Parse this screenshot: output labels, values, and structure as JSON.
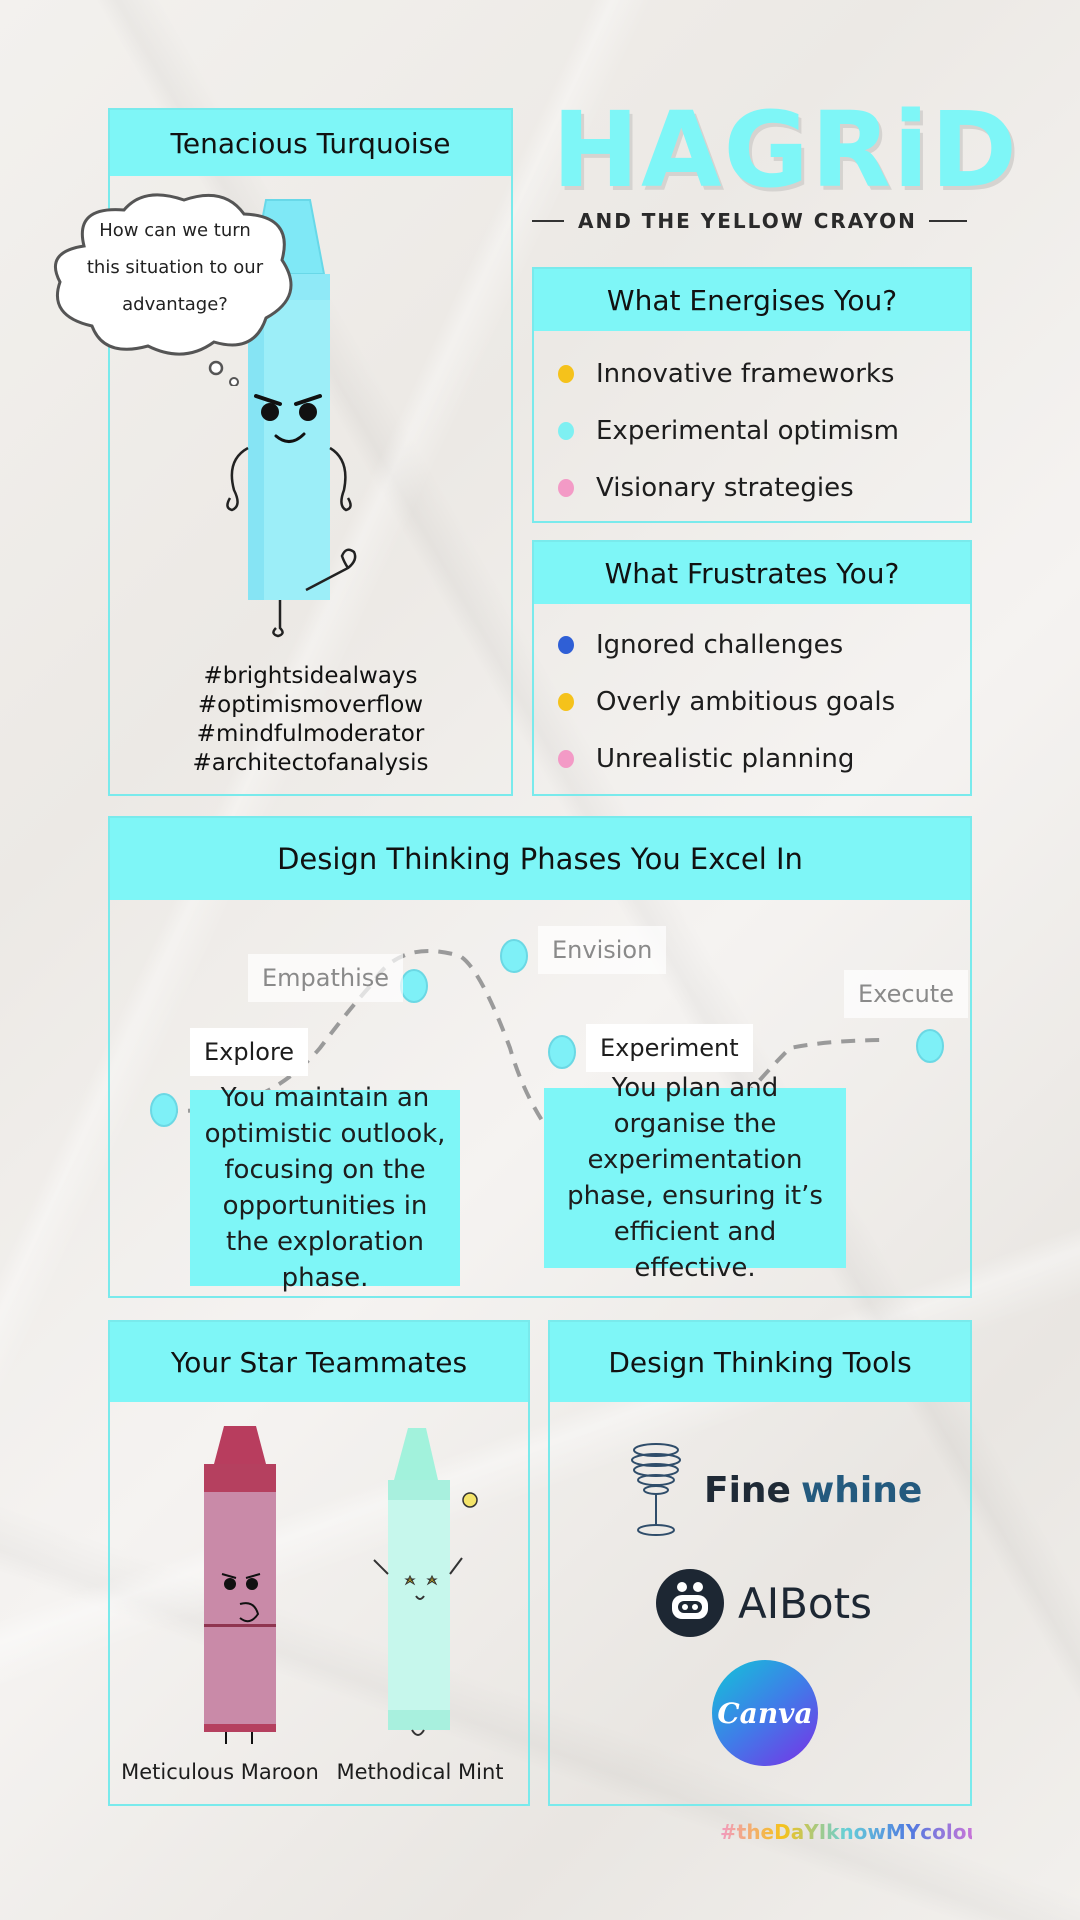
{
  "header": {
    "title": "HAGRiD",
    "subtitle": "AND THE YELLOW CRAYON"
  },
  "profile": {
    "name": "Tenacious Turquoise",
    "thought": "How can we turn this situation to our advantage?",
    "hashtags": [
      "#brightsidealways",
      "#optimismoverflow",
      "#mindfulmoderator",
      "#architectofanalysis"
    ]
  },
  "energises": {
    "title": "What Energises You?",
    "items": [
      {
        "label": "Innovative frameworks",
        "color": "#f5c21b"
      },
      {
        "label": "Experimental optimism",
        "color": "#7ef0f2"
      },
      {
        "label": "Visionary strategies",
        "color": "#f39ac6"
      }
    ]
  },
  "frustrates": {
    "title": "What Frustrates You?",
    "items": [
      {
        "label": "Ignored challenges",
        "color": "#2f5fd6"
      },
      {
        "label": "Overly ambitious goals",
        "color": "#f5c21b"
      },
      {
        "label": "Unrealistic planning",
        "color": "#f39ac6"
      }
    ]
  },
  "phases": {
    "title": "Design Thinking Phases You Excel In",
    "labels": {
      "explore": "Explore",
      "empathise": "Empathise",
      "envision": "Envision",
      "experiment": "Experiment",
      "execute": "Execute"
    },
    "desc_explore": "You maintain an optimistic outlook, focusing on the opportunities in the exploration phase.",
    "desc_experiment": "You plan and organise the experimentation phase, ensuring it’s efficient and effective."
  },
  "teammates": {
    "title": "Your Star Teammates",
    "members": [
      {
        "name": "Meticulous Maroon",
        "color": "#c2506d"
      },
      {
        "name": "Methodical Mint",
        "color": "#9ff3e0"
      }
    ]
  },
  "tools": {
    "title": "Design Thinking Tools",
    "items": [
      {
        "name_a": "Fine",
        "name_b": "whine"
      },
      {
        "name": "AIBots"
      },
      {
        "name": "Canva"
      }
    ]
  },
  "footer": {
    "hashtag": "#theDaYIknowMYcolour"
  },
  "colors": {
    "accent": "#7ef6f7",
    "border": "#79eaec"
  }
}
